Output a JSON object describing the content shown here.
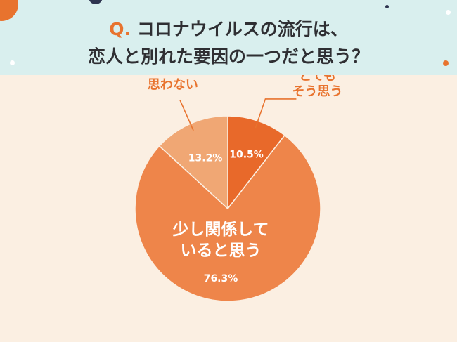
{
  "header": {
    "q_mark": "Q.",
    "line1": "コロナウイルスの流行は、",
    "line2": "恋人と別れた要因の一つだと思う？"
  },
  "colors": {
    "background": "#fbefe2",
    "header_bg": "#d9efee",
    "accent": "#e8732e",
    "title_text": "#2f2f33",
    "slice_strong": "#e8692a",
    "slice_main": "#ee854a",
    "slice_no": "#f0a774"
  },
  "chart_data": {
    "type": "pie",
    "title": "Q. コロナウイルスの流行は、恋人と別れた要因の一つだと思う？",
    "start": "12 o'clock, clockwise",
    "slices": [
      {
        "label_lines": [
          "とても",
          "そう思う"
        ],
        "value": 10.5,
        "value_text": "10.5%",
        "color": "#e8692a",
        "label_position": "outside-top-right"
      },
      {
        "label_lines": [
          "少し関係して",
          "いると思う"
        ],
        "value": 76.3,
        "value_text": "76.3%",
        "color": "#ee854a",
        "label_position": "inside"
      },
      {
        "label_lines": [
          "思わない"
        ],
        "value": 13.2,
        "value_text": "13.2%",
        "color": "#f0a774",
        "label_position": "outside-top-left"
      }
    ]
  }
}
